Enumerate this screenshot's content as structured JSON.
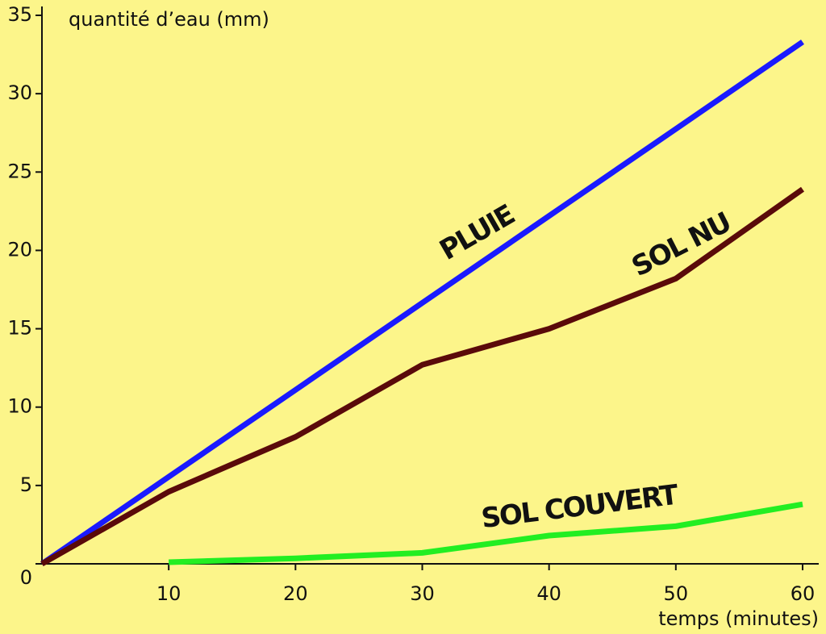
{
  "chart_data": {
    "type": "line",
    "y_label": "quantité d’eau (mm)",
    "x_label": "temps (minutes)",
    "x": [
      0,
      10,
      20,
      30,
      40,
      50,
      60
    ],
    "series": [
      {
        "name": "PLUIE",
        "color": "#1a1aff",
        "values": [
          0,
          5.55,
          11.1,
          16.65,
          22.2,
          27.75,
          33.3
        ]
      },
      {
        "name": "SOL NU",
        "color": "#5a0a0a",
        "values": [
          0,
          4.6,
          8.1,
          12.7,
          15.0,
          18.2,
          23.9
        ]
      },
      {
        "name": "SOL COUVERT",
        "color": "#22ee22",
        "values": [
          null,
          0.1,
          0.35,
          0.7,
          1.8,
          2.4,
          3.8
        ]
      }
    ],
    "xlim": [
      0,
      60
    ],
    "ylim": [
      0,
      35
    ],
    "xticks": [
      10,
      20,
      30,
      40,
      50,
      60
    ],
    "yticks": [
      0,
      5,
      10,
      15,
      20,
      25,
      30,
      35
    ]
  }
}
